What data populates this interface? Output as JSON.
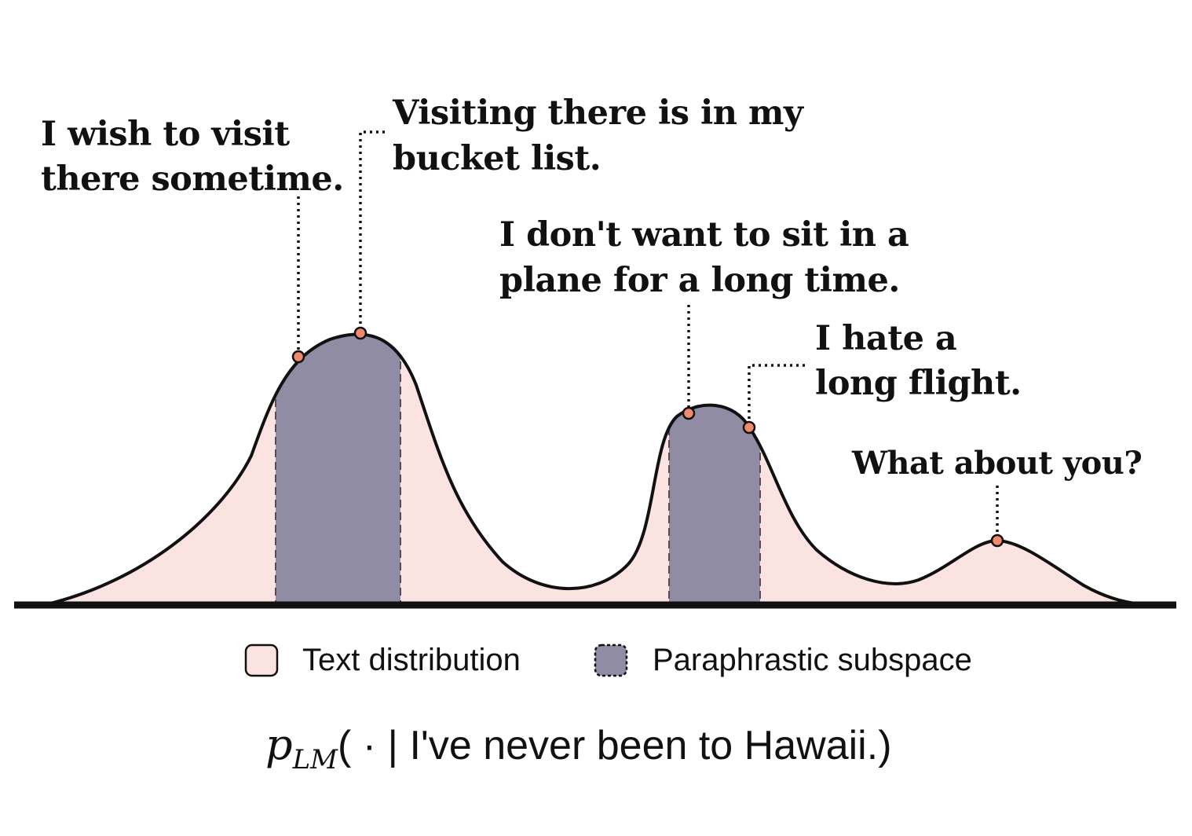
{
  "colors": {
    "text_distribution_fill": "#fae3e0",
    "paraphrastic_fill": "#8f8ca3",
    "marker_fill": "#f08a6e",
    "outline": "#111111"
  },
  "annotations": [
    {
      "id": "wish",
      "lines": [
        "I wish to visit",
        "there sometime."
      ]
    },
    {
      "id": "bucket",
      "lines": [
        "Visiting there is in my",
        "bucket list."
      ]
    },
    {
      "id": "plane",
      "lines": [
        "I don't want to sit in a",
        "plane for a long time."
      ]
    },
    {
      "id": "flight",
      "lines": [
        "I hate a",
        "long flight."
      ]
    },
    {
      "id": "whatabout",
      "lines": [
        "What about you?"
      ]
    }
  ],
  "legend": {
    "text_distribution": "Text distribution",
    "paraphrastic_subspace": "Paraphrastic subspace"
  },
  "formula": {
    "p": "p",
    "subscript": "LM",
    "open": "( · | ",
    "condition": "I've never been to Hawaii.",
    "close": ")"
  }
}
